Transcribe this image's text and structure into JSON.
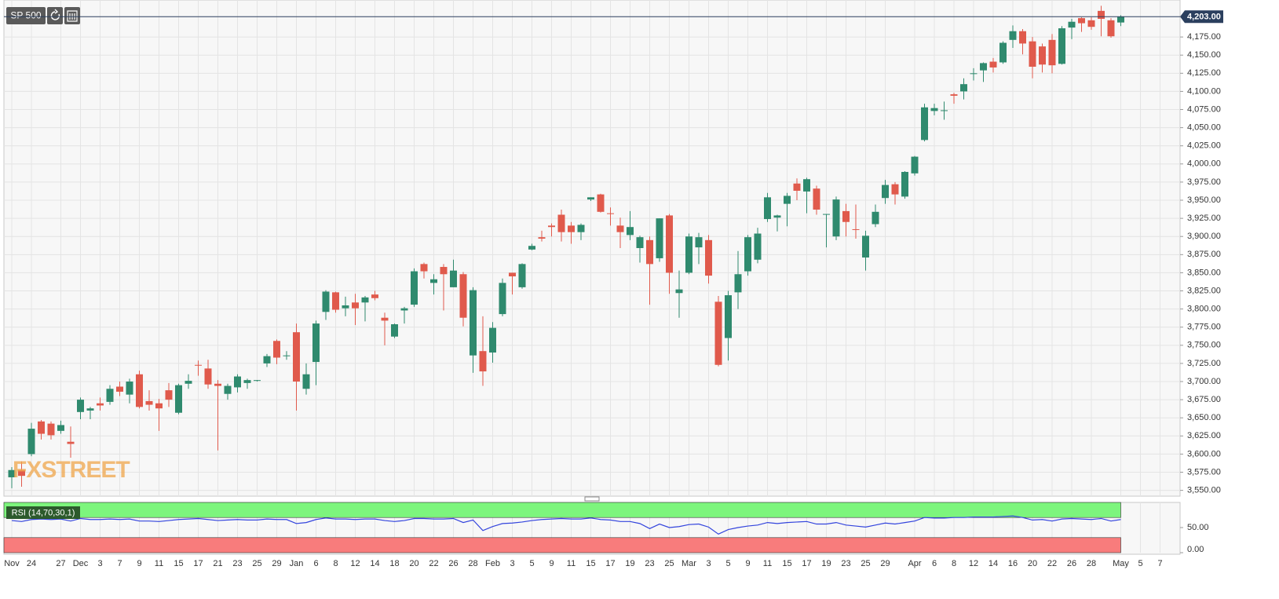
{
  "chart_data": {
    "type": "candlestick",
    "title": "SP 500",
    "watermark": "FXSTREET",
    "up_color": "#2f8a6e",
    "down_color": "#e05a4c",
    "categories": [
      "Nov",
      null,
      "24",
      null,
      null,
      "27",
      null,
      "Dec",
      null,
      "3",
      null,
      "7",
      null,
      "9",
      null,
      "11",
      null,
      "15",
      null,
      "17",
      null,
      "21",
      null,
      "23",
      null,
      "25",
      null,
      "29",
      null,
      "Jan",
      null,
      "6",
      null,
      "8",
      null,
      "12",
      null,
      "14",
      null,
      "18",
      null,
      "20",
      null,
      "22",
      null,
      "26",
      null,
      "28",
      null,
      "Feb",
      null,
      "3",
      null,
      "5",
      null,
      "9",
      null,
      "11",
      null,
      "15",
      null,
      "17",
      null,
      "19",
      null,
      "23",
      null,
      "25",
      null,
      "Mar",
      null,
      "3",
      null,
      "5",
      null,
      "9",
      null,
      "11",
      null,
      "15",
      null,
      "17",
      null,
      "19",
      null,
      "23",
      null,
      "25",
      null,
      "29",
      null,
      null,
      "Apr",
      null,
      "6",
      null,
      "8",
      null,
      "12",
      null,
      "14",
      null,
      "16",
      null,
      "20",
      null,
      "22",
      null,
      "26",
      null,
      "28",
      null,
      null,
      "May",
      null,
      "5",
      null,
      "7"
    ],
    "open": [
      3568,
      3578,
      3600,
      3645,
      3642,
      3632,
      3617,
      3658,
      3660,
      3670,
      3672,
      3693,
      3682,
      3710,
      3673,
      3670,
      3688,
      3657,
      3697,
      3723,
      3718,
      3697,
      3683,
      3692,
      3698,
      3701,
      3725,
      3756,
      3735,
      3768,
      3690,
      3727,
      3796,
      3823,
      3801,
      3809,
      3809,
      3820,
      3788,
      3762,
      3798,
      3806,
      3862,
      3836,
      3858,
      3830,
      3848,
      3736,
      3742,
      3740,
      3793,
      3850,
      3830,
      3882,
      3899,
      3915,
      3930,
      3915,
      3906,
      3951,
      3958,
      3932,
      3915,
      3902,
      3884,
      3895,
      3870,
      3929,
      3822,
      3850,
      3885,
      3895,
      3810,
      3760,
      3823,
      3852,
      3868,
      3924,
      3926,
      3945,
      3973,
      3962,
      3966,
      3930,
      3900,
      3935,
      3910,
      3871,
      3917,
      3953,
      3972,
      3955,
      3987,
      4033,
      4073,
      4073,
      4096,
      4100,
      4125,
      4129,
      4141,
      4140,
      4171,
      4183,
      4169,
      4162,
      4171,
      4138,
      4188,
      4201,
      4198,
      4211,
      4198,
      4195,
      null,
      null,
      null,
      null
    ],
    "high": [
      3582,
      3590,
      3643,
      3647,
      3645,
      3646,
      3638,
      3678,
      3665,
      3678,
      3695,
      3700,
      3704,
      3715,
      3688,
      3676,
      3698,
      3697,
      3710,
      3729,
      3730,
      3702,
      3697,
      3710,
      3704,
      3702,
      3738,
      3758,
      3742,
      3780,
      3725,
      3784,
      3826,
      3824,
      3817,
      3821,
      3818,
      3825,
      3795,
      3780,
      3803,
      3856,
      3864,
      3848,
      3862,
      3868,
      3851,
      3830,
      3790,
      3782,
      3842,
      3850,
      3863,
      3890,
      3908,
      3918,
      3937,
      3920,
      3918,
      3954,
      3959,
      3940,
      3926,
      3935,
      3901,
      3900,
      3925,
      3931,
      3853,
      3904,
      3905,
      3902,
      3818,
      3825,
      3880,
      3902,
      3912,
      3960,
      3930,
      3960,
      3980,
      3981,
      3970,
      3931,
      3955,
      3945,
      3944,
      3908,
      3944,
      3978,
      3975,
      3990,
      4011,
      4083,
      4083,
      4086,
      4098,
      4118,
      4132,
      4140,
      4146,
      4169,
      4191,
      4186,
      4175,
      4166,
      4179,
      4190,
      4200,
      4202,
      4202,
      4218,
      4201,
      4205,
      null,
      null,
      null,
      null
    ],
    "low": [
      3553,
      3555,
      3597,
      3620,
      3620,
      3628,
      3595,
      3648,
      3648,
      3660,
      3668,
      3680,
      3670,
      3663,
      3660,
      3632,
      3665,
      3655,
      3690,
      3708,
      3690,
      3605,
      3675,
      3685,
      3690,
      3700,
      3720,
      3724,
      3730,
      3660,
      3682,
      3695,
      3785,
      3795,
      3790,
      3778,
      3783,
      3812,
      3750,
      3760,
      3780,
      3803,
      3842,
      3820,
      3798,
      3830,
      3776,
      3712,
      3694,
      3726,
      3790,
      3820,
      3828,
      3881,
      3893,
      3900,
      3893,
      3890,
      3895,
      3949,
      3933,
      3915,
      3884,
      3895,
      3864,
      3806,
      3865,
      3821,
      3788,
      3848,
      3862,
      3835,
      3721,
      3729,
      3800,
      3846,
      3863,
      3920,
      3907,
      3914,
      3950,
      3932,
      3930,
      3885,
      3895,
      3900,
      3897,
      3853,
      3913,
      3945,
      3944,
      3952,
      3984,
      4031,
      4067,
      4061,
      4083,
      4089,
      4115,
      4113,
      4126,
      4138,
      4160,
      4151,
      4118,
      4126,
      4125,
      4137,
      4172,
      4182,
      4185,
      4176,
      4174,
      4190,
      null,
      null,
      null,
      null
    ],
    "close": [
      3578,
      3570,
      3635,
      3628,
      3626,
      3640,
      3614,
      3675,
      3663,
      3667,
      3690,
      3686,
      3700,
      3665,
      3668,
      3663,
      3675,
      3695,
      3701,
      3722,
      3696,
      3694,
      3694,
      3707,
      3702,
      3702,
      3735,
      3733,
      3736,
      3700,
      3710,
      3780,
      3824,
      3799,
      3805,
      3801,
      3816,
      3815,
      3784,
      3779,
      3801,
      3852,
      3852,
      3841,
      3848,
      3853,
      3788,
      3826,
      3714,
      3774,
      3836,
      3845,
      3862,
      3887,
      3897,
      3913,
      3906,
      3906,
      3916,
      3954,
      3934,
      3931,
      3906,
      3913,
      3899,
      3862,
      3925,
      3850,
      3827,
      3900,
      3899,
      3846,
      3723,
      3819,
      3848,
      3899,
      3904,
      3954,
      3929,
      3956,
      3963,
      3979,
      3937,
      3931,
      3951,
      3920,
      3909,
      3901,
      3934,
      3971,
      3958,
      3989,
      4010,
      4078,
      4077,
      4074,
      4094,
      4110,
      4125,
      4139,
      4133,
      4167,
      4183,
      4166,
      4134,
      4137,
      4136,
      4187,
      4196,
      4194,
      4189,
      4200,
      4176,
      4203,
      null,
      null,
      null,
      null
    ],
    "last_price": {
      "value": 4203,
      "label": "4,203.00"
    },
    "ylim": [
      3542,
      4226
    ],
    "yticks": [
      {
        "value": 3550,
        "label": "3,550.00"
      },
      {
        "value": 3575,
        "label": "3,575.00"
      },
      {
        "value": 3600,
        "label": "3,600.00"
      },
      {
        "value": 3625,
        "label": "3,625.00"
      },
      {
        "value": 3650,
        "label": "3,650.00"
      },
      {
        "value": 3675,
        "label": "3,675.00"
      },
      {
        "value": 3700,
        "label": "3,700.00"
      },
      {
        "value": 3725,
        "label": "3,725.00"
      },
      {
        "value": 3750,
        "label": "3,750.00"
      },
      {
        "value": 3775,
        "label": "3,775.00"
      },
      {
        "value": 3800,
        "label": "3,800.00"
      },
      {
        "value": 3825,
        "label": "3,825.00"
      },
      {
        "value": 3850,
        "label": "3,850.00"
      },
      {
        "value": 3875,
        "label": "3,875.00"
      },
      {
        "value": 3900,
        "label": "3,900.00"
      },
      {
        "value": 3925,
        "label": "3,925.00"
      },
      {
        "value": 3950,
        "label": "3,950.00"
      },
      {
        "value": 3975,
        "label": "3,975.00"
      },
      {
        "value": 4000,
        "label": "4,000.00"
      },
      {
        "value": 4025,
        "label": "4,025.00"
      },
      {
        "value": 4050,
        "label": "4,050.00"
      },
      {
        "value": 4075,
        "label": "4,075.00"
      },
      {
        "value": 4100,
        "label": "4,100.00"
      },
      {
        "value": 4125,
        "label": "4,125.00"
      },
      {
        "value": 4150,
        "label": "4,150.00"
      },
      {
        "value": 4175,
        "label": "4,175.00"
      }
    ],
    "grid": true,
    "rsi": {
      "name": "RSI (14,70,30,1)",
      "color": "#3344dd",
      "overbought": 70,
      "oversold": 30,
      "overbought_color": "#7df57d",
      "oversold_color": "#f87c7c",
      "ylim": [
        0,
        100
      ],
      "yticks": [
        {
          "value": 0,
          "label": "0.00"
        },
        {
          "value": 50,
          "label": "50.00"
        }
      ],
      "values": [
        64,
        62,
        66,
        67,
        66,
        67,
        63,
        68,
        66,
        66,
        67,
        66,
        67,
        63,
        63,
        62,
        64,
        66,
        67,
        68,
        66,
        64,
        65,
        66,
        65,
        65,
        67,
        66,
        66,
        58,
        60,
        66,
        69,
        67,
        67,
        66,
        67,
        67,
        64,
        62,
        64,
        68,
        68,
        67,
        67,
        68,
        60,
        65,
        44,
        52,
        58,
        59,
        61,
        64,
        66,
        67,
        68,
        67,
        67,
        69,
        66,
        65,
        62,
        62,
        58,
        48,
        57,
        50,
        52,
        56,
        57,
        51,
        37,
        46,
        50,
        53,
        55,
        60,
        58,
        60,
        61,
        62,
        57,
        57,
        60,
        55,
        53,
        51,
        55,
        59,
        57,
        60,
        63,
        70,
        69,
        69,
        70,
        70,
        71,
        71,
        71,
        72,
        73,
        70,
        65,
        66,
        63,
        67,
        68,
        67,
        66,
        68,
        63,
        66,
        null,
        null,
        null,
        null
      ]
    }
  }
}
